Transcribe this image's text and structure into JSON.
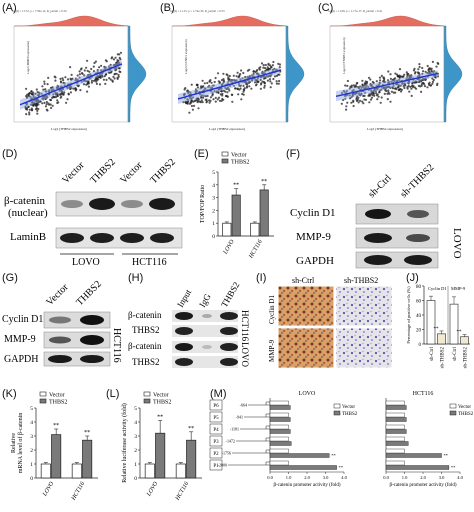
{
  "panels": {
    "A": {
      "letter": "(A)",
      "header": "log(I) = 11.72, p = 7.59e-12, R_partial = 0.34",
      "ylabel": "Log2 (MMP9 expression)",
      "xlabel": "Log2 (THBS2 expression)"
    },
    "B": {
      "letter": "(B)",
      "header": "log(I) = 11.15, p = 1.74e-32, R_partial = 0.53",
      "ylabel": "Log2 (CCND1 expression)",
      "xlabel": "Log2 (THBS2 expression)"
    },
    "C": {
      "letter": "(C)",
      "header": "log(I) = 11.09, p = 1.17e-17, R_partial = 0.41",
      "ylabel": "Log2 (CTNNB1 expression)",
      "xlabel": "Log2 (THBS2 expression)"
    },
    "D": {
      "letter": "(D)",
      "lanes": [
        "Vector",
        "THBS2",
        "Vector",
        "THBS2"
      ],
      "rows": [
        "β-catenin\n(nuclear)",
        "LaminB"
      ],
      "groups": [
        "LOVO",
        "HCT116"
      ]
    },
    "E": {
      "letter": "(E)",
      "legend": [
        "Vector",
        "THBS2"
      ],
      "ylabel": "TOP/FOP Ratio",
      "categories": [
        "LOVO",
        "HCT116"
      ],
      "yticks": [
        "0",
        "1",
        "2",
        "3",
        "4",
        "5"
      ],
      "sig": [
        "**",
        "**"
      ]
    },
    "F": {
      "letter": "(F)",
      "lanes": [
        "sh-Ctrl",
        "sh-THBS2"
      ],
      "rows": [
        "Cyclin D1",
        "MMP-9",
        "GAPDH"
      ],
      "side": "LOVO"
    },
    "G": {
      "letter": "(G)",
      "lanes": [
        "Vector",
        "THBS2"
      ],
      "rows": [
        "Cyclin D1",
        "MMP-9",
        "GAPDH"
      ],
      "side": "HCT116"
    },
    "H": {
      "letter": "(H)",
      "lanes": [
        "Input",
        "IgG",
        "THBS2"
      ],
      "rows": [
        "β-catenin",
        "THBS2",
        "β-catenin",
        "THBS2"
      ],
      "side": [
        "HCT116",
        "LOVO"
      ]
    },
    "I": {
      "letter": "(I)",
      "cols": [
        "sh-Ctrl",
        "sh-THBS2"
      ],
      "rows": [
        "Cyclin D1",
        "MMP-9"
      ]
    },
    "J": {
      "letter": "(J)",
      "ylabel": "Percentage of positive cells (%)",
      "yticks": [
        "0",
        "20",
        "40",
        "60",
        "80"
      ],
      "groups": [
        "Cyclin D1",
        "MMP-9"
      ],
      "xlabels": [
        "sh-Ctrl",
        "sh-THBS2",
        "sh-Ctrl",
        "sh-THBS2"
      ],
      "sig": [
        "**",
        "**"
      ]
    },
    "K": {
      "letter": "(K)",
      "legend": [
        "Vector",
        "THBS2"
      ],
      "ylabel": "Relative\nmRNA level of β-catenin",
      "categories": [
        "LOVO",
        "HCT116"
      ],
      "yticks": [
        "0",
        "1",
        "2",
        "3",
        "4",
        "5"
      ],
      "sig": [
        "**",
        "**"
      ]
    },
    "L": {
      "letter": "(L)",
      "legend": [
        "Vector",
        "THBS2"
      ],
      "ylabel": "Relative luciferase activity (fold)",
      "categories": [
        "LOVO",
        "HCT116"
      ],
      "yticks": [
        "0",
        "1",
        "2",
        "3",
        "4",
        "5"
      ],
      "sig": [
        "**",
        "**"
      ]
    },
    "M": {
      "letter": "(M)",
      "titles": [
        "LOVO",
        "HCT116"
      ],
      "legend": [
        "Vector",
        "THBS2"
      ],
      "constructs": [
        "P6",
        "P5",
        "P4",
        "P3",
        "P2",
        "P1"
      ],
      "positions": [
        "-664",
        "-941",
        "-1181",
        "-1472",
        "-1756",
        "-2000"
      ],
      "xlabel": "β-catenin promoter activity (fold)",
      "xticks": [
        "0.0",
        "1.0",
        "2.0",
        "3.0",
        "4.0"
      ]
    }
  },
  "chart_data": [
    {
      "type": "scatter",
      "panel": "A",
      "title": "log(I) = 11.72, p = 7.59e-12, R_partial = 0.34",
      "xlabel": "Log2 (THBS2 expression)",
      "ylabel": "Log2 (MMP9 expression)"
    },
    {
      "type": "scatter",
      "panel": "B",
      "title": "log(I) = 11.15, p = 1.74e-32, R_partial = 0.53",
      "xlabel": "Log2 (THBS2 expression)",
      "ylabel": "Log2 (CCND1 expression)"
    },
    {
      "type": "scatter",
      "panel": "C",
      "title": "log(I) = 11.09, p = 1.17e-17, R_partial = 0.41",
      "xlabel": "Log2 (THBS2 expression)",
      "ylabel": "Log2 (CTNNB1 expression)"
    },
    {
      "type": "bar",
      "panel": "E",
      "categories": [
        "LOVO",
        "HCT116"
      ],
      "series": [
        {
          "name": "Vector",
          "values": [
            1.0,
            1.0
          ],
          "err": [
            0.1,
            0.1
          ]
        },
        {
          "name": "THBS2",
          "values": [
            3.2,
            3.6
          ],
          "err": [
            0.5,
            0.4
          ]
        }
      ],
      "ylabel": "TOP/FOP Ratio",
      "ylim": [
        0,
        5
      ]
    },
    {
      "type": "bar",
      "panel": "J",
      "categories": [
        "sh-Ctrl",
        "sh-THBS2",
        "sh-Ctrl",
        "sh-THBS2"
      ],
      "values": [
        60,
        14,
        55,
        10
      ],
      "err": [
        6,
        4,
        10,
        3
      ],
      "ylabel": "Percentage of positive cells (%)",
      "ylim": [
        0,
        80
      ]
    },
    {
      "type": "bar",
      "panel": "K",
      "categories": [
        "LOVO",
        "HCT116"
      ],
      "series": [
        {
          "name": "Vector",
          "values": [
            1.0,
            1.0
          ],
          "err": [
            0.1,
            0.1
          ]
        },
        {
          "name": "THBS2",
          "values": [
            3.1,
            2.7
          ],
          "err": [
            0.4,
            0.3
          ]
        }
      ],
      "ylabel": "Relative mRNA level of β-catenin",
      "ylim": [
        0,
        5
      ]
    },
    {
      "type": "bar",
      "panel": "L",
      "categories": [
        "LOVO",
        "HCT116"
      ],
      "series": [
        {
          "name": "Vector",
          "values": [
            1.0,
            1.0
          ],
          "err": [
            0.1,
            0.1
          ]
        },
        {
          "name": "THBS2",
          "values": [
            3.2,
            2.7
          ],
          "err": [
            0.9,
            0.6
          ]
        }
      ],
      "ylabel": "Relative luciferase activity (fold)",
      "ylim": [
        0,
        5
      ]
    },
    {
      "type": "bar",
      "panel": "M-LOVO",
      "orientation": "horizontal",
      "categories": [
        "P6",
        "P5",
        "P4",
        "P3",
        "P2",
        "P1"
      ],
      "series": [
        {
          "name": "Vector",
          "values": [
            1.0,
            1.0,
            1.0,
            1.0,
            1.0,
            1.0
          ]
        },
        {
          "name": "THBS2",
          "values": [
            1.1,
            1.1,
            1.1,
            1.15,
            3.2,
            3.6
          ]
        }
      ],
      "xlabel": "β-catenin promoter activity (fold)",
      "xlim": [
        0,
        4
      ]
    },
    {
      "type": "bar",
      "panel": "M-HCT116",
      "orientation": "horizontal",
      "categories": [
        "P6",
        "P5",
        "P4",
        "P3",
        "P2",
        "P1"
      ],
      "series": [
        {
          "name": "Vector",
          "values": [
            1.0,
            1.0,
            1.0,
            1.0,
            1.0,
            1.0
          ]
        },
        {
          "name": "THBS2",
          "values": [
            1.1,
            1.1,
            1.1,
            1.2,
            3.0,
            3.4
          ]
        }
      ],
      "xlabel": "β-catenin promoter activity (fold)",
      "xlim": [
        0,
        4
      ]
    }
  ],
  "colors": {
    "vector": "#ffffff",
    "thbs2": "#7a7a7a",
    "density_top": "#e46d5f",
    "density_side": "#3d95c8",
    "regression": "#2233cc"
  }
}
